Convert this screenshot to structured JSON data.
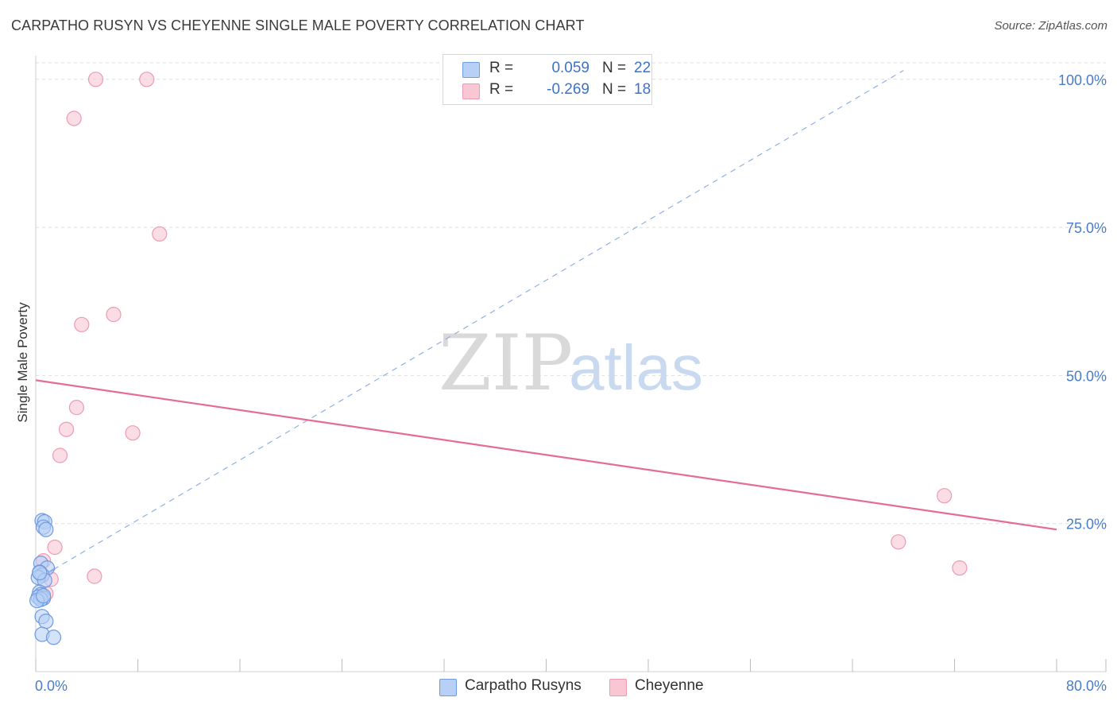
{
  "title": "CARPATHO RUSYN VS CHEYENNE SINGLE MALE POVERTY CORRELATION CHART",
  "source": "Source: ZipAtlas.com",
  "watermark": {
    "zip": "ZIP",
    "atlas": "atlas"
  },
  "legend": {
    "series": [
      {
        "r_label": "R =",
        "r_value": "0.059",
        "n_label": "N =",
        "n_value": "22"
      },
      {
        "r_label": "R =",
        "r_value": "-0.269",
        "n_label": "N =",
        "n_value": "18"
      }
    ]
  },
  "bottom_legend": {
    "series_a": "Carpatho Rusyns",
    "series_b": "Cheyenne"
  },
  "colors": {
    "blue_fill": "#b8d0f5",
    "blue_stroke": "#6f9be0",
    "blue_line": "#3d6fd1",
    "pink_fill": "#f9c6d4",
    "pink_stroke": "#ee9ab3",
    "pink_line": "#e56c95",
    "grid": "#dedede",
    "tick_text": "#4a7cc9"
  },
  "chart_data": {
    "type": "scatter",
    "title": "CARPATHO RUSYN VS CHEYENNE SINGLE MALE POVERTY CORRELATION CHART",
    "xlabel": "",
    "ylabel": "Single Male Poverty",
    "xlim": [
      0,
      80
    ],
    "ylim": [
      0,
      104
    ],
    "x_tick_labels": [
      "0.0%",
      "80.0%"
    ],
    "y_ticks": [
      25,
      50,
      75,
      100
    ],
    "y_tick_labels": [
      "25.0%",
      "50.0%",
      "75.0%",
      "100.0%"
    ],
    "series": [
      {
        "name": "Carpatho Rusyns",
        "points": [
          [
            0.5,
            25.5
          ],
          [
            0.7,
            25.3
          ],
          [
            0.6,
            24.4
          ],
          [
            0.8,
            24.0
          ],
          [
            0.4,
            18.3
          ],
          [
            0.9,
            17.5
          ],
          [
            0.3,
            16.8
          ],
          [
            0.5,
            16.3
          ],
          [
            0.2,
            15.9
          ],
          [
            0.7,
            15.4
          ],
          [
            0.3,
            13.4
          ],
          [
            0.4,
            13.0
          ],
          [
            0.2,
            12.6
          ],
          [
            0.6,
            12.4
          ],
          [
            0.4,
            12.2
          ],
          [
            0.1,
            12.0
          ],
          [
            0.5,
            9.3
          ],
          [
            0.8,
            8.5
          ],
          [
            0.5,
            6.3
          ],
          [
            1.4,
            5.8
          ],
          [
            0.3,
            16.7
          ],
          [
            0.6,
            12.8
          ]
        ],
        "trend": {
          "x": [
            0,
            68
          ],
          "y": [
            15.5,
            101.5
          ],
          "style": "dashed-extrapolated"
        },
        "trend_solid": {
          "x": [
            0,
            1.5
          ],
          "y": [
            15.5,
            17.4
          ]
        }
      },
      {
        "name": "Cheyenne",
        "points": [
          [
            4.7,
            100.0
          ],
          [
            8.7,
            100.0
          ],
          [
            3.0,
            93.4
          ],
          [
            9.7,
            73.9
          ],
          [
            6.1,
            60.3
          ],
          [
            3.6,
            58.6
          ],
          [
            3.2,
            44.6
          ],
          [
            2.4,
            40.9
          ],
          [
            7.6,
            40.3
          ],
          [
            1.9,
            36.5
          ],
          [
            1.5,
            21.0
          ],
          [
            0.6,
            18.7
          ],
          [
            4.6,
            16.1
          ],
          [
            1.2,
            15.6
          ],
          [
            0.8,
            13.2
          ],
          [
            67.6,
            21.9
          ],
          [
            71.2,
            29.7
          ],
          [
            72.4,
            17.5
          ]
        ],
        "trend": {
          "x": [
            0,
            80
          ],
          "y": [
            49.2,
            24.0
          ],
          "style": "solid"
        }
      }
    ]
  }
}
